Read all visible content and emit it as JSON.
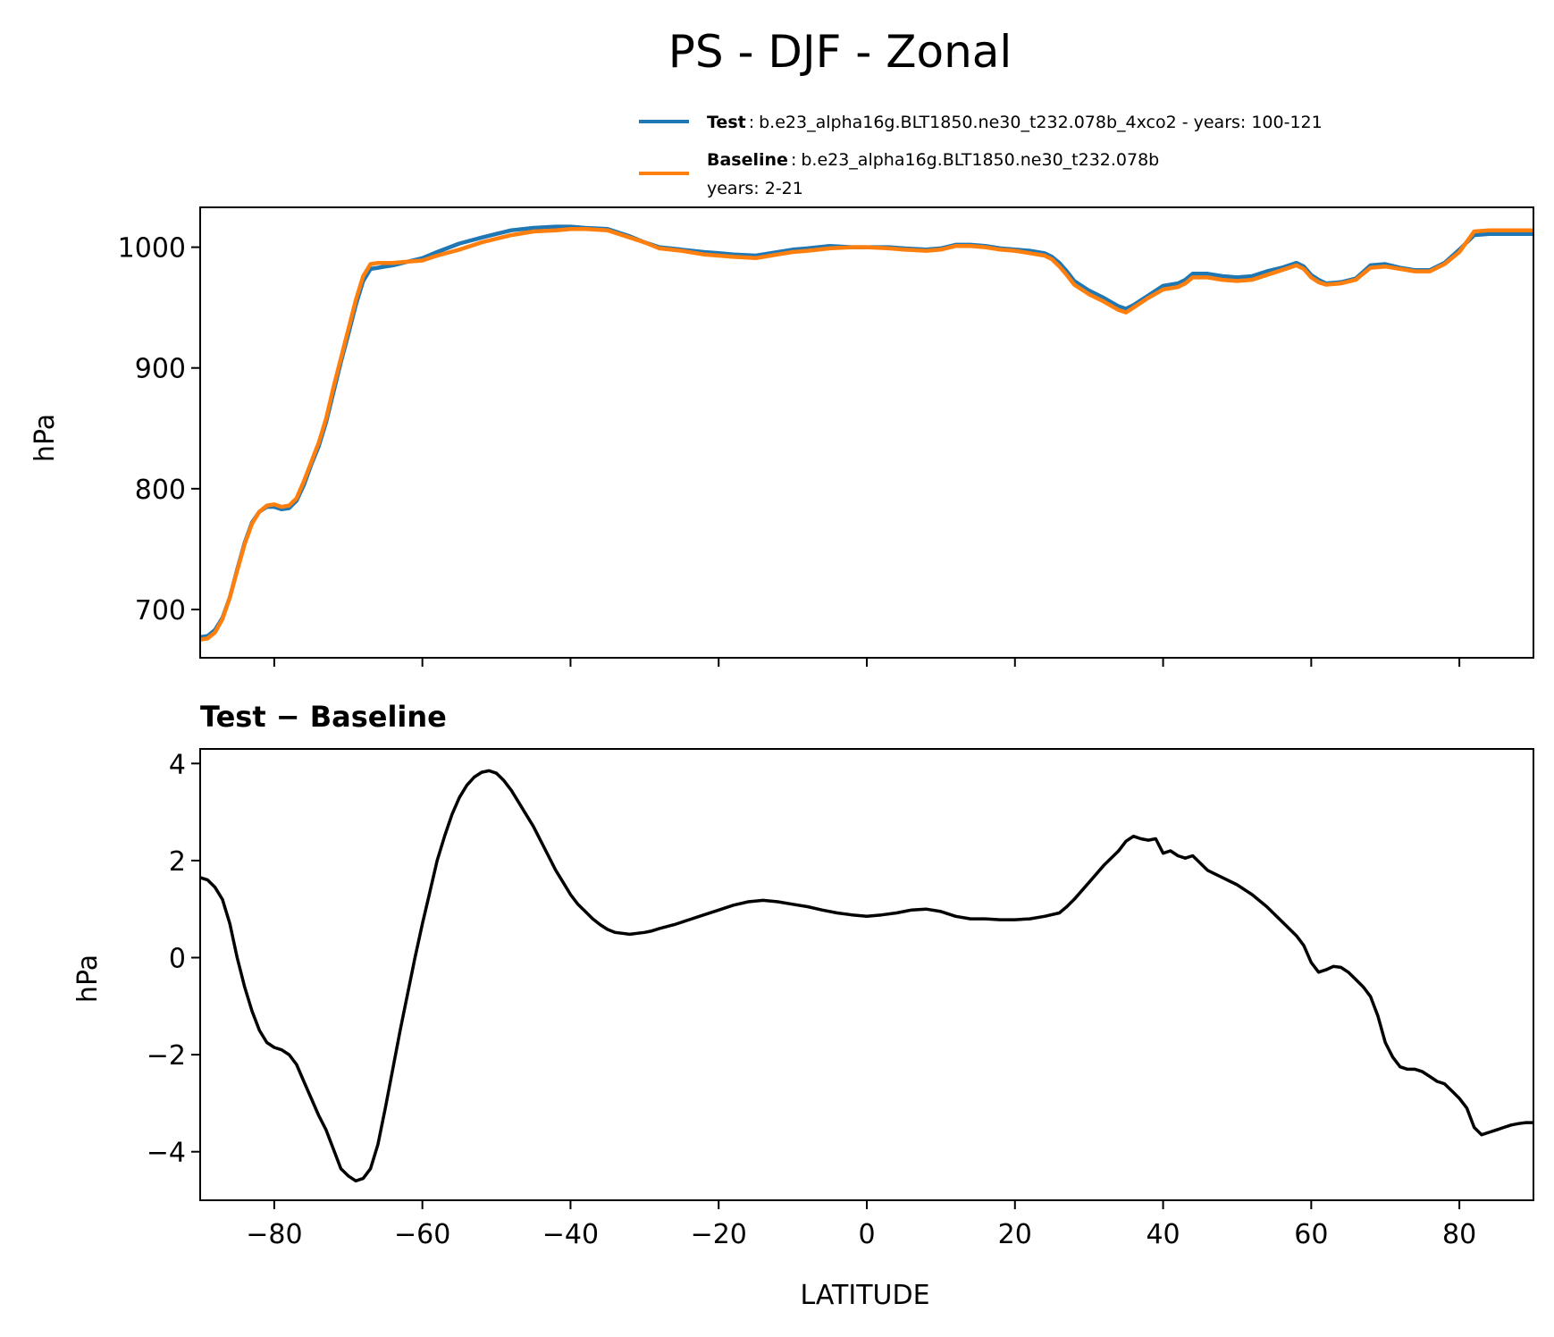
{
  "chart_data": [
    {
      "type": "line",
      "title": "PS - DJF - Zonal",
      "xlabel": "",
      "ylabel": "hPa",
      "xlim": [
        -90,
        90
      ],
      "ylim": [
        660,
        1033
      ],
      "xticks": [
        -80,
        -60,
        -40,
        -20,
        0,
        20,
        40,
        60,
        80
      ],
      "yticks": [
        700,
        800,
        900,
        1000
      ],
      "ytick_labels": [
        "700",
        "800",
        "900",
        "1000"
      ],
      "legend": {
        "position": "top-right",
        "entries": [
          {
            "name": "Test",
            "separator": ":",
            "text": "b.e23_alpha16g.BLT1850.ne30_t232.078b_4xco2 - years: 100-121",
            "color": "#1f77b4"
          },
          {
            "name": "Baseline",
            "separator": ":",
            "text": "b.e23_alpha16g.BLT1850.ne30_t232.078b",
            "text2": "years: 2-21",
            "color": "#ff7f0e"
          }
        ]
      },
      "series": [
        {
          "name": "Test",
          "color": "#1f77b4",
          "x": [
            -90,
            -89,
            -88,
            -87,
            -86,
            -85,
            -84,
            -83,
            -82,
            -81,
            -80,
            -79,
            -78,
            -77,
            -76,
            -75,
            -74,
            -73,
            -72,
            -71,
            -70,
            -69,
            -68,
            -67,
            -66,
            -65,
            -64,
            -62,
            -60,
            -58,
            -55,
            -52,
            -50,
            -48,
            -45,
            -42,
            -40,
            -38,
            -35,
            -32,
            -30,
            -28,
            -25,
            -22,
            -20,
            -18,
            -15,
            -12,
            -10,
            -8,
            -5,
            -2,
            0,
            3,
            5,
            8,
            10,
            12,
            14,
            16,
            18,
            20,
            22,
            24,
            25,
            26,
            27,
            28,
            30,
            32,
            34,
            35,
            36,
            38,
            40,
            42,
            43,
            44,
            46,
            48,
            50,
            52,
            54,
            56,
            58,
            59,
            60,
            61,
            62,
            64,
            66,
            68,
            70,
            72,
            74,
            76,
            78,
            80,
            82,
            84,
            86,
            88,
            90
          ],
          "values": [
            677,
            678,
            683,
            693,
            710,
            733,
            755,
            772,
            781,
            785,
            785,
            783,
            784,
            790,
            803,
            820,
            835,
            855,
            880,
            905,
            928,
            952,
            972,
            982,
            983,
            984,
            985,
            988,
            991,
            996,
            1003,
            1008,
            1011,
            1014,
            1016,
            1017,
            1017,
            1016,
            1015,
            1009,
            1004,
            1000,
            998,
            996,
            995,
            994,
            993,
            996,
            998,
            999,
            1001,
            1000,
            1000,
            1000,
            999,
            998,
            999,
            1002,
            1002,
            1001,
            999,
            998,
            997,
            995,
            992,
            987,
            980,
            972,
            964,
            958,
            951,
            949,
            952,
            960,
            968,
            970,
            973,
            978,
            978,
            976,
            975,
            976,
            980,
            983,
            987,
            984,
            977,
            973,
            970,
            971,
            974,
            985,
            986,
            983,
            981,
            981,
            987,
            998,
            1010,
            1011,
            1011,
            1011,
            1011
          ]
        },
        {
          "name": "Baseline",
          "color": "#ff7f0e",
          "x": [
            -90,
            -89,
            -88,
            -87,
            -86,
            -85,
            -84,
            -83,
            -82,
            -81,
            -80,
            -79,
            -78,
            -77,
            -76,
            -75,
            -74,
            -73,
            -72,
            -71,
            -70,
            -69,
            -68,
            -67,
            -66,
            -65,
            -64,
            -62,
            -60,
            -58,
            -55,
            -52,
            -50,
            -48,
            -45,
            -42,
            -40,
            -38,
            -35,
            -32,
            -30,
            -28,
            -25,
            -22,
            -20,
            -18,
            -15,
            -12,
            -10,
            -8,
            -5,
            -2,
            0,
            3,
            5,
            8,
            10,
            12,
            14,
            16,
            18,
            20,
            22,
            24,
            25,
            26,
            27,
            28,
            30,
            32,
            34,
            35,
            36,
            38,
            40,
            42,
            43,
            44,
            46,
            48,
            50,
            52,
            54,
            56,
            58,
            59,
            60,
            61,
            62,
            64,
            66,
            68,
            70,
            72,
            74,
            76,
            78,
            80,
            82,
            84,
            86,
            88,
            90
          ],
          "values": [
            675,
            676,
            681,
            692,
            710,
            732,
            754,
            771,
            781,
            786,
            787,
            785,
            786,
            792,
            806,
            822,
            838,
            858,
            884,
            908,
            932,
            956,
            976,
            986,
            987,
            987,
            987,
            988,
            989,
            993,
            998,
            1004,
            1007,
            1010,
            1013,
            1014,
            1015,
            1015,
            1014,
            1008,
            1004,
            999,
            997,
            994,
            993,
            992,
            991,
            994,
            996,
            997,
            999,
            1000,
            1000,
            999,
            998,
            997,
            998,
            1001,
            1001,
            1000,
            998,
            997,
            995,
            993,
            990,
            984,
            977,
            969,
            961,
            955,
            948,
            946,
            950,
            958,
            965,
            967,
            970,
            975,
            975,
            973,
            972,
            973,
            977,
            981,
            985,
            982,
            975,
            971,
            969,
            970,
            973,
            983,
            984,
            982,
            980,
            980,
            986,
            996,
            1013,
            1014,
            1014,
            1014,
            1014
          ]
        }
      ]
    },
    {
      "type": "line",
      "title": "Test − Baseline",
      "xlabel": "LATITUDE",
      "ylabel": "hPa",
      "xlim": [
        -90,
        90
      ],
      "ylim": [
        -5,
        4.3
      ],
      "xticks": [
        -80,
        -60,
        -40,
        -20,
        0,
        20,
        40,
        60,
        80
      ],
      "xtick_labels": [
        "−80",
        "−60",
        "−40",
        "−20",
        "0",
        "20",
        "40",
        "60",
        "80"
      ],
      "yticks": [
        -4,
        -2,
        0,
        2,
        4
      ],
      "ytick_labels": [
        "−4",
        "−2",
        "0",
        "2",
        "4"
      ],
      "series": [
        {
          "name": "Test − Baseline",
          "color": "#000000",
          "x": [
            -90,
            -89,
            -88,
            -87,
            -86,
            -85,
            -84,
            -83,
            -82,
            -81,
            -80,
            -79,
            -78,
            -77,
            -76,
            -75,
            -74,
            -73,
            -72,
            -71,
            -70,
            -69,
            -68,
            -67,
            -66,
            -65,
            -64,
            -63,
            -62,
            -61,
            -60,
            -59,
            -58,
            -57,
            -56,
            -55,
            -54,
            -53,
            -52,
            -51,
            -50,
            -49,
            -48,
            -47,
            -46,
            -45,
            -44,
            -43,
            -42,
            -41,
            -40,
            -39,
            -38,
            -37,
            -36,
            -35,
            -34,
            -33,
            -32,
            -31,
            -30,
            -29,
            -28,
            -26,
            -24,
            -22,
            -20,
            -18,
            -16,
            -14,
            -12,
            -10,
            -8,
            -6,
            -4,
            -2,
            0,
            2,
            4,
            6,
            8,
            10,
            12,
            14,
            16,
            18,
            20,
            22,
            24,
            26,
            27,
            28,
            30,
            32,
            34,
            35,
            36,
            37,
            38,
            39,
            40,
            41,
            42,
            43,
            44,
            45,
            46,
            48,
            50,
            52,
            54,
            56,
            58,
            59,
            60,
            61,
            62,
            63,
            64,
            65,
            66,
            67,
            68,
            69,
            70,
            71,
            72,
            73,
            74,
            75,
            76,
            77,
            78,
            79,
            80,
            81,
            82,
            83,
            84,
            85,
            86,
            87,
            88,
            89,
            90
          ],
          "values": [
            1.65,
            1.6,
            1.45,
            1.2,
            0.7,
            0.0,
            -0.6,
            -1.1,
            -1.5,
            -1.75,
            -1.85,
            -1.9,
            -2.0,
            -2.2,
            -2.55,
            -2.9,
            -3.25,
            -3.55,
            -3.95,
            -4.35,
            -4.5,
            -4.6,
            -4.55,
            -4.35,
            -3.85,
            -3.1,
            -2.3,
            -1.5,
            -0.75,
            0.0,
            0.7,
            1.35,
            2.0,
            2.5,
            2.95,
            3.3,
            3.55,
            3.72,
            3.82,
            3.85,
            3.8,
            3.65,
            3.45,
            3.2,
            2.95,
            2.7,
            2.4,
            2.1,
            1.8,
            1.55,
            1.3,
            1.1,
            0.95,
            0.8,
            0.68,
            0.58,
            0.52,
            0.5,
            0.48,
            0.5,
            0.52,
            0.55,
            0.6,
            0.68,
            0.78,
            0.88,
            0.98,
            1.08,
            1.15,
            1.18,
            1.15,
            1.1,
            1.05,
            0.98,
            0.92,
            0.88,
            0.85,
            0.88,
            0.92,
            0.98,
            1.0,
            0.95,
            0.85,
            0.8,
            0.8,
            0.78,
            0.78,
            0.8,
            0.85,
            0.92,
            1.05,
            1.2,
            1.55,
            1.9,
            2.2,
            2.4,
            2.5,
            2.45,
            2.42,
            2.45,
            2.15,
            2.2,
            2.1,
            2.05,
            2.1,
            1.95,
            1.8,
            1.65,
            1.5,
            1.3,
            1.05,
            0.75,
            0.45,
            0.25,
            -0.1,
            -0.3,
            -0.25,
            -0.18,
            -0.2,
            -0.3,
            -0.45,
            -0.6,
            -0.8,
            -1.2,
            -1.75,
            -2.05,
            -2.25,
            -2.3,
            -2.3,
            -2.35,
            -2.45,
            -2.55,
            -2.6,
            -2.75,
            -2.9,
            -3.1,
            -3.5,
            -3.65,
            -3.6,
            -3.55,
            -3.5,
            -3.45,
            -3.42,
            -3.4,
            -3.4
          ]
        }
      ]
    }
  ]
}
